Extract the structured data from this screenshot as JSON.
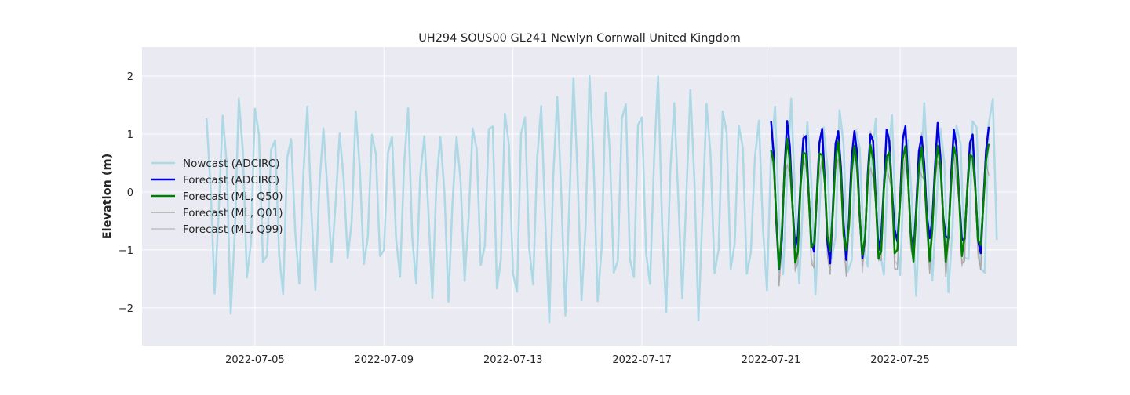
{
  "chart_data": {
    "type": "line",
    "title": "UH294 SOUS00 GL241 Newlyn Cornwall United Kingdom",
    "xlabel": "",
    "ylabel": "Elevation (m)",
    "x_axis": {
      "type": "date",
      "range": [
        "2022-07-01T12:00",
        "2022-07-28T15:00"
      ],
      "tick_labels": [
        "2022-07-05",
        "2022-07-09",
        "2022-07-13",
        "2022-07-17",
        "2022-07-21",
        "2022-07-25"
      ]
    },
    "y_axis": {
      "range": [
        -2.65,
        2.5
      ],
      "ticks": [
        2,
        1,
        0,
        -1,
        -2
      ],
      "tick_labels": [
        "2",
        "1",
        "0",
        "−1",
        "−2"
      ]
    },
    "grid": true,
    "background": "#eaeaf2",
    "legend": {
      "placement": "center-left",
      "entries": [
        "Nowcast (ADCIRC)",
        "Forecast (ADCIRC)",
        "Forecast (ML, Q50)",
        "Forecast (ML, Q01)",
        "Forecast (ML, Q99)"
      ]
    },
    "series": [
      {
        "name": "Nowcast (ADCIRC)",
        "color": "#add8e6",
        "x": [
          "2022-07-03T12:00",
          "2022-07-28T00:00"
        ],
        "waveform": "semidiurnal",
        "period_hours": 12.42,
        "sample_hours": 3,
        "high_range": [
          0.8,
          2.2
        ],
        "low_range": [
          -1.1,
          -2.45
        ]
      },
      {
        "name": "Forecast (ADCIRC)",
        "color": "#0000dd",
        "x": [
          "2022-07-21T00:00",
          "2022-07-27T18:00"
        ],
        "waveform": "semidiurnal",
        "period_hours": 12.42,
        "sample_hours": 2,
        "high_range": [
          0.9,
          1.4
        ],
        "low_range": [
          -0.75,
          -1.45
        ]
      },
      {
        "name": "Forecast (ML, Q50)",
        "color": "#008000",
        "x": [
          "2022-07-21T00:00",
          "2022-07-27T18:00"
        ],
        "waveform": "semidiurnal",
        "period_hours": 12.42,
        "sample_hours": 2,
        "high_range": [
          0.6,
          1.0
        ],
        "low_range": [
          -0.9,
          -1.45
        ]
      },
      {
        "name": "Forecast (ML, Q01)",
        "color": "#a9a9a9",
        "x": [
          "2022-07-21T00:00",
          "2022-07-27T18:00"
        ],
        "waveform": "semidiurnal",
        "period_hours": 12.42,
        "sample_hours": 2,
        "high_range": [
          0.2,
          1.0
        ],
        "low_range": [
          -1.2,
          -1.8
        ]
      },
      {
        "name": "Forecast (ML, Q99)",
        "color": "#c0c0c0",
        "x": [
          "2022-07-21T00:00",
          "2022-07-27T18:00"
        ],
        "waveform": "semidiurnal",
        "period_hours": 12.42,
        "sample_hours": 2,
        "high_range": [
          0.9,
          1.2
        ],
        "low_range": [
          -1.2,
          -1.55
        ]
      }
    ]
  }
}
